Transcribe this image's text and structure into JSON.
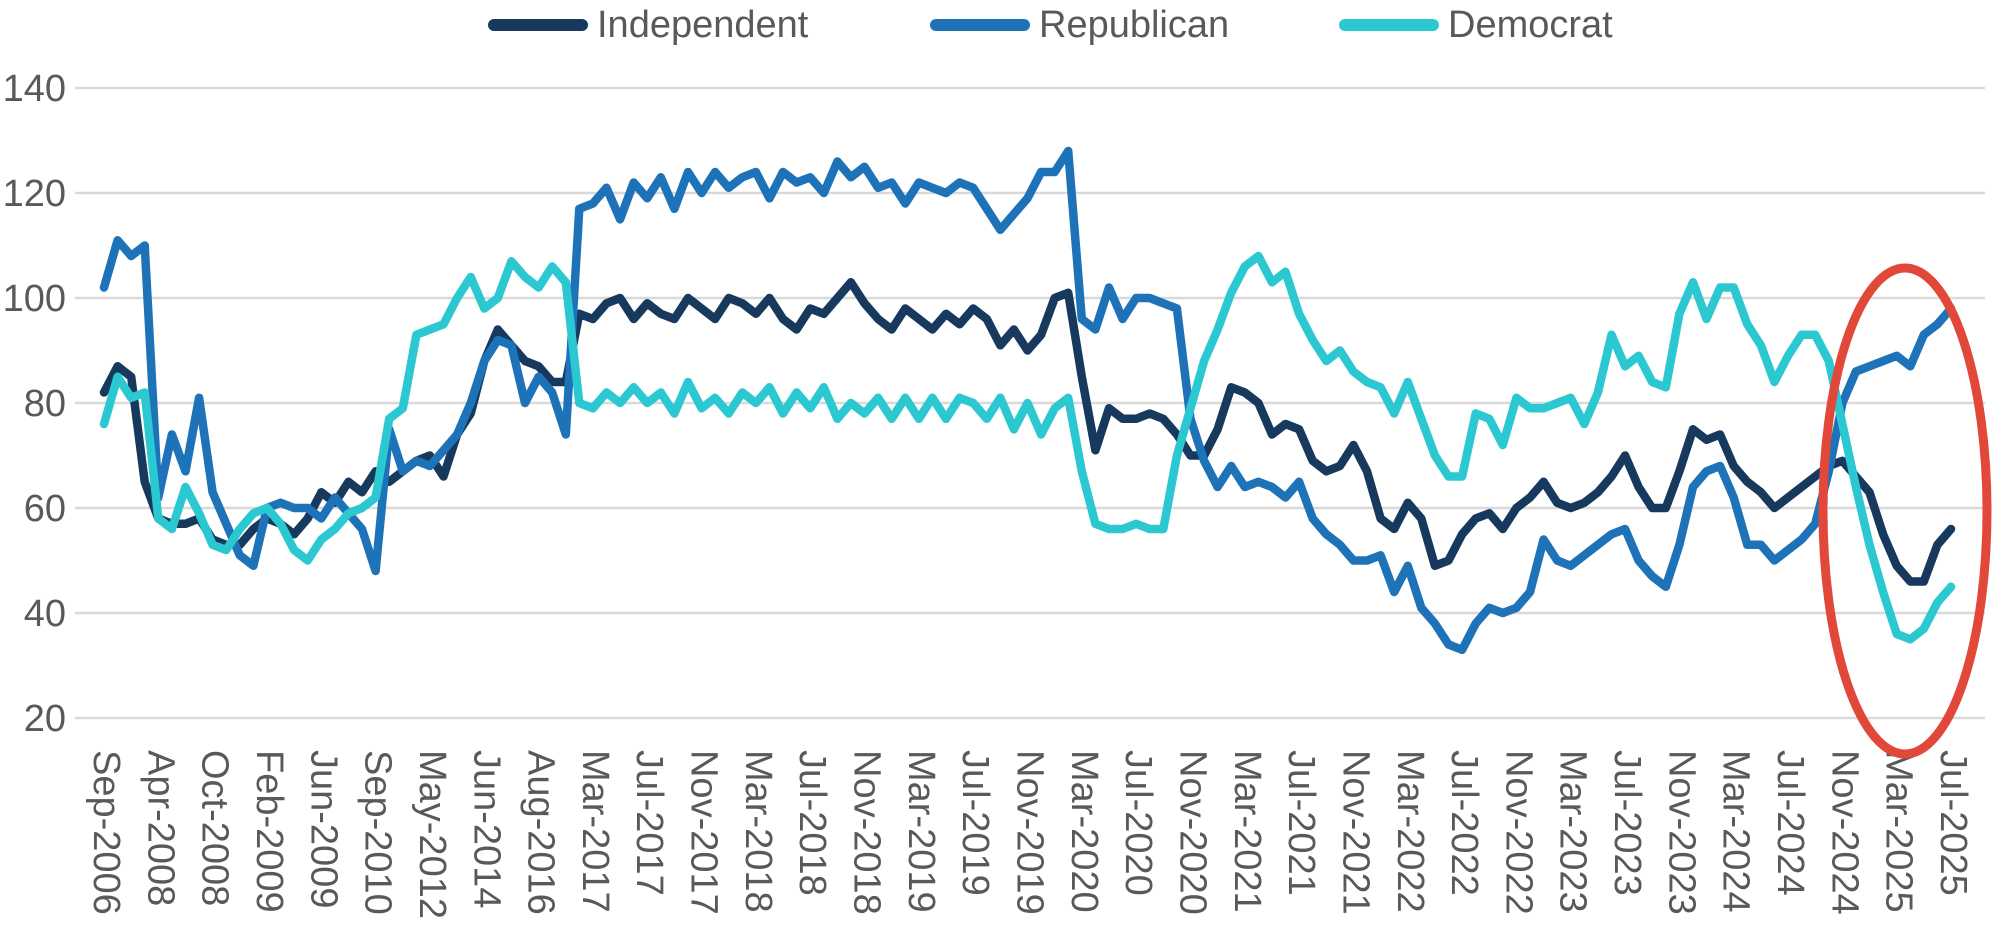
{
  "chart_data": {
    "type": "line",
    "title": "",
    "xlabel": "",
    "ylabel": "",
    "grid": true,
    "background_color": "#ffffff",
    "colors": {
      "gridline": "#d9d9d9",
      "tick_text": "#595959",
      "legend_text": "#595959"
    },
    "legend": {
      "position": "top",
      "items": [
        {
          "label": "Independent",
          "color": "#17395d"
        },
        {
          "label": "Republican",
          "color": "#1e73b8"
        },
        {
          "label": "Democrat",
          "color": "#2bc8d2"
        }
      ]
    },
    "y_axis": {
      "min": 20,
      "max": 140,
      "step": 20,
      "tick_labels": [
        "140",
        "120",
        "100",
        "80",
        "60",
        "40",
        "20"
      ]
    },
    "x_axis": {
      "note_points_per_label_interval": 4,
      "tick_labels": [
        "Sep-2006",
        "Apr-2008",
        "Oct-2008",
        "Feb-2009",
        "Jun-2009",
        "Sep-2010",
        "May-2012",
        "Jun-2014",
        "Aug-2016",
        "Mar-2017",
        "Jul-2017",
        "Nov-2017",
        "Mar-2018",
        "Jul-2018",
        "Nov-2018",
        "Mar-2019",
        "Jul-2019",
        "Nov-2019",
        "Mar-2020",
        "Jul-2020",
        "Nov-2020",
        "Mar-2021",
        "Jul-2021",
        "Nov-2021",
        "Mar-2022",
        "Jul-2022",
        "Nov-2022",
        "Mar-2023",
        "Jul-2023",
        "Nov-2023",
        "Mar-2024",
        "Jul-2024",
        "Nov-2024",
        "Mar-2025",
        "Jul-2025"
      ]
    },
    "series": [
      {
        "name": "Independent",
        "color": "#17395d",
        "values": [
          82,
          87,
          85,
          65,
          58,
          57,
          57,
          58,
          54,
          53,
          53,
          56,
          58,
          57,
          55,
          58,
          63,
          61,
          65,
          63,
          67,
          65,
          67,
          69,
          70,
          66,
          74,
          78,
          88,
          94,
          91,
          88,
          87,
          84,
          84,
          97,
          96,
          99,
          100,
          96,
          99,
          97,
          96,
          100,
          98,
          96,
          100,
          99,
          97,
          100,
          96,
          94,
          98,
          97,
          100,
          103,
          99,
          96,
          94,
          98,
          96,
          94,
          97,
          95,
          98,
          96,
          91,
          94,
          90,
          93,
          100,
          101,
          85,
          71,
          79,
          77,
          77,
          78,
          77,
          74,
          70,
          70,
          75,
          83,
          82,
          80,
          74,
          76,
          75,
          69,
          67,
          68,
          72,
          67,
          58,
          56,
          61,
          58,
          49,
          50,
          55,
          58,
          59,
          56,
          60,
          62,
          65,
          61,
          60,
          61,
          63,
          66,
          70,
          64,
          60,
          60,
          67,
          75,
          73,
          74,
          68,
          65,
          63,
          60,
          62,
          64,
          66,
          68,
          69,
          66,
          63,
          55,
          49,
          46,
          46,
          53,
          56
        ]
      },
      {
        "name": "Republican",
        "color": "#1e73b8",
        "values": [
          102,
          111,
          108,
          110,
          62,
          74,
          67,
          81,
          63,
          57,
          51,
          49,
          60,
          61,
          60,
          60,
          58,
          62,
          59,
          56,
          48,
          75,
          67,
          69,
          68,
          71,
          74,
          80,
          88,
          92,
          91,
          80,
          85,
          82,
          74,
          117,
          118,
          121,
          115,
          122,
          119,
          123,
          117,
          124,
          120,
          124,
          121,
          123,
          124,
          119,
          124,
          122,
          123,
          120,
          126,
          123,
          125,
          121,
          122,
          118,
          122,
          121,
          120,
          122,
          121,
          117,
          113,
          116,
          119,
          124,
          124,
          128,
          96,
          94,
          102,
          96,
          100,
          100,
          99,
          98,
          77,
          69,
          64,
          68,
          64,
          65,
          64,
          62,
          65,
          58,
          55,
          53,
          50,
          50,
          51,
          44,
          49,
          41,
          38,
          34,
          33,
          38,
          41,
          40,
          41,
          44,
          54,
          50,
          49,
          51,
          53,
          55,
          56,
          50,
          47,
          45,
          53,
          64,
          67,
          68,
          62,
          53,
          53,
          50,
          52,
          54,
          57,
          67,
          80,
          86,
          87,
          88,
          89,
          87,
          93,
          95,
          98
        ]
      },
      {
        "name": "Democrat",
        "color": "#2bc8d2",
        "values": [
          76,
          85,
          81,
          82,
          58,
          56,
          64,
          59,
          53,
          52,
          56,
          59,
          60,
          57,
          52,
          50,
          54,
          56,
          59,
          60,
          62,
          77,
          79,
          93,
          94,
          95,
          100,
          104,
          98,
          100,
          107,
          104,
          102,
          106,
          103,
          80,
          79,
          82,
          80,
          83,
          80,
          82,
          78,
          84,
          79,
          81,
          78,
          82,
          80,
          83,
          78,
          82,
          79,
          83,
          77,
          80,
          78,
          81,
          77,
          81,
          77,
          81,
          77,
          81,
          80,
          77,
          81,
          75,
          80,
          74,
          79,
          81,
          67,
          57,
          56,
          56,
          57,
          56,
          56,
          70,
          79,
          88,
          94,
          101,
          106,
          108,
          103,
          105,
          97,
          92,
          88,
          90,
          86,
          84,
          83,
          78,
          84,
          77,
          70,
          66,
          66,
          78,
          77,
          72,
          81,
          79,
          79,
          80,
          81,
          76,
          82,
          93,
          87,
          89,
          84,
          83,
          97,
          103,
          96,
          102,
          102,
          95,
          91,
          84,
          89,
          93,
          93,
          88,
          76,
          64,
          53,
          44,
          36,
          35,
          37,
          42,
          45
        ]
      }
    ],
    "annotation": {
      "shape": "ellipse",
      "color": "#e2483a",
      "highlighted_labels": [
        "Mar-2025",
        "Jul-2025"
      ],
      "description": "red ellipse circling the most recent months at the right edge of the chart"
    }
  }
}
